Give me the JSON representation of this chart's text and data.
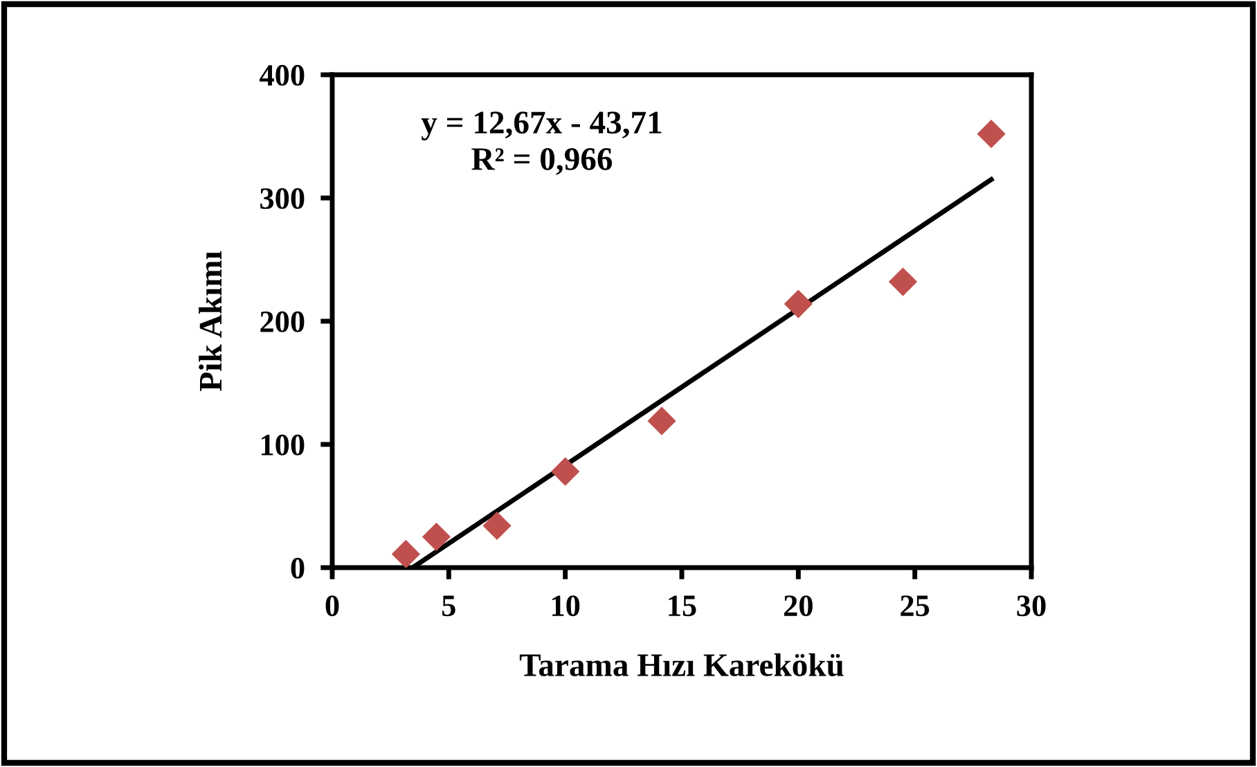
{
  "chart_data": {
    "type": "scatter",
    "xlabel": "Tarama Hızı Karekökü",
    "ylabel": "Pik Akımı",
    "x": [
      3.16,
      4.47,
      7.07,
      10,
      14.14,
      20,
      24.49,
      28.28
    ],
    "series": [
      {
        "type": "scatter",
        "color": "#c0504d",
        "marker": "diamond",
        "values": [
          11,
          25,
          34,
          78,
          119,
          214,
          232,
          352
        ]
      },
      {
        "type": "line",
        "color": "#000000",
        "marker": "none",
        "line_style": "solid",
        "x": [
          3.45,
          28.28
        ],
        "values": [
          0,
          315
        ]
      }
    ],
    "xlim": [
      0,
      30
    ],
    "xticks": [
      0,
      5,
      10,
      15,
      20,
      25,
      30
    ],
    "ylim": [
      0,
      400
    ],
    "yticks": [
      0,
      100,
      200,
      300,
      400
    ],
    "grid": false,
    "legend": false,
    "annotations": [
      "y = 12,67x - 43,71\nR² = 0,966"
    ]
  }
}
